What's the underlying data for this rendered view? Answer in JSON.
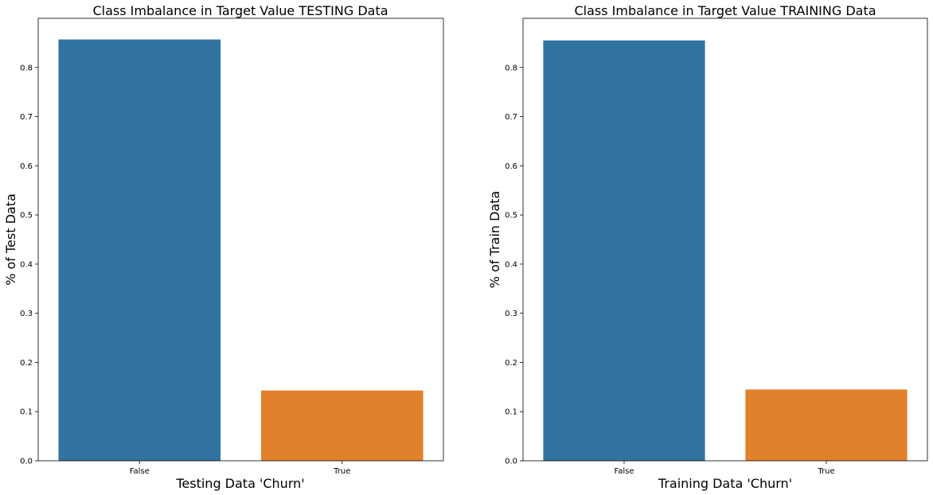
{
  "chart_data": [
    {
      "type": "bar",
      "title": "Class Imbalance in Target Value TESTING Data",
      "xlabel": "Testing Data 'Churn'",
      "ylabel": "% of Test Data",
      "categories": [
        "False",
        "True"
      ],
      "values": [
        0.857,
        0.143
      ],
      "colors": [
        "#3274a1",
        "#e1812c"
      ],
      "ylim": [
        0,
        0.9
      ],
      "yticks": [
        0.0,
        0.1,
        0.2,
        0.3,
        0.4,
        0.5,
        0.6,
        0.7,
        0.8
      ],
      "ytick_labels": [
        "0.0",
        "0.1",
        "0.2",
        "0.3",
        "0.4",
        "0.5",
        "0.6",
        "0.7",
        "0.8"
      ],
      "grid": false,
      "legend": "none"
    },
    {
      "type": "bar",
      "title": "Class Imbalance in Target Value TRAINING Data",
      "xlabel": "Training Data 'Churn'",
      "ylabel": "% of Train Data",
      "categories": [
        "False",
        "True"
      ],
      "values": [
        0.855,
        0.145
      ],
      "colors": [
        "#3274a1",
        "#e1812c"
      ],
      "ylim": [
        0,
        0.9
      ],
      "yticks": [
        0.0,
        0.1,
        0.2,
        0.3,
        0.4,
        0.5,
        0.6,
        0.7,
        0.8
      ],
      "ytick_labels": [
        "0.0",
        "0.1",
        "0.2",
        "0.3",
        "0.4",
        "0.5",
        "0.6",
        "0.7",
        "0.8"
      ],
      "grid": false,
      "legend": "none"
    }
  ]
}
